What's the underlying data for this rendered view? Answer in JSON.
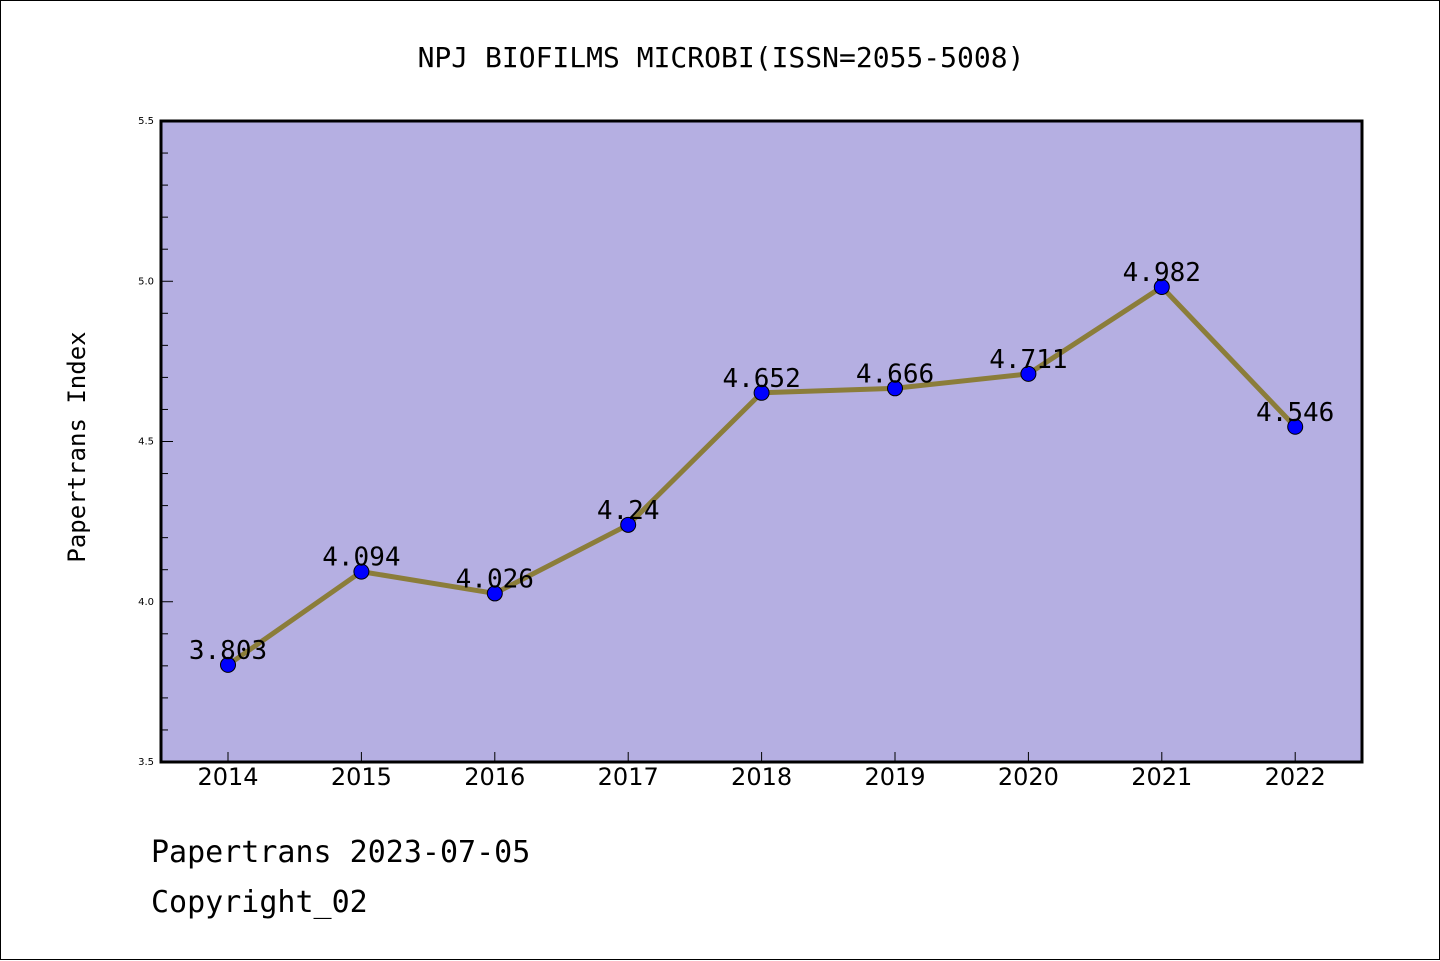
{
  "chart_data": {
    "type": "line",
    "title": "NPJ BIOFILMS MICROBI(ISSN=2055-5008)",
    "ylabel": "Papertrans Index",
    "xlabel": "",
    "x": [
      "2014",
      "2015",
      "2016",
      "2017",
      "2018",
      "2019",
      "2020",
      "2021",
      "2022"
    ],
    "series": [
      {
        "values": [
          3.803,
          4.094,
          4.026,
          4.24,
          4.652,
          4.666,
          4.711,
          4.982,
          4.546
        ],
        "labels": [
          "3.803",
          "4.094",
          "4.026",
          "4.24",
          "4.652",
          "4.666",
          "4.711",
          "4.982",
          "4.546"
        ],
        "line_color": "#8b7d3a",
        "marker_color": "#0000ff"
      }
    ],
    "ylim": [
      3.5,
      5.5
    ],
    "yticks": [
      3.5,
      4.0,
      4.5,
      5.0,
      5.5
    ],
    "ytick_labels": [
      "3.5",
      "4.0",
      "4.5",
      "5.0",
      "5.5"
    ],
    "plot_background": "#b5afe2",
    "grid": false,
    "legend": "none"
  },
  "footer": {
    "date_line": "Papertrans 2023-07-05",
    "copyright_line": "Copyright_02"
  }
}
